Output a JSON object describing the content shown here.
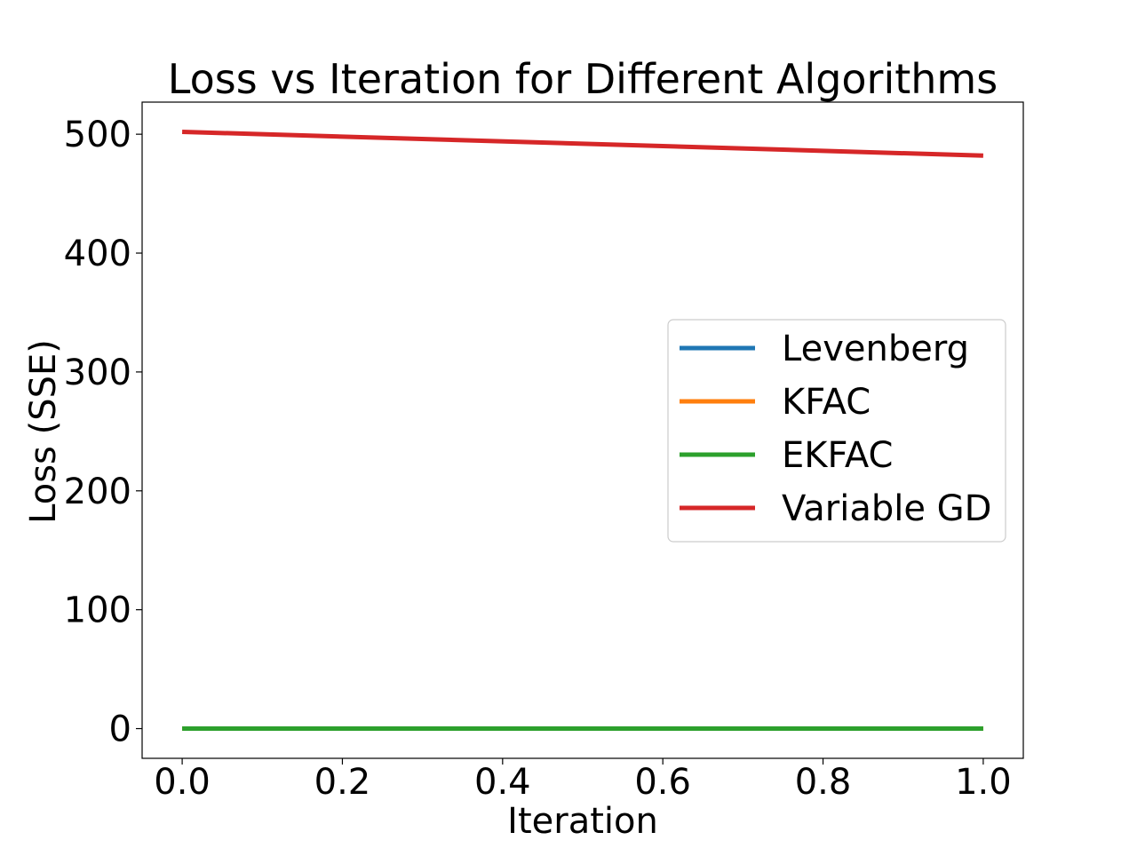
{
  "chart_data": {
    "type": "line",
    "title": "Loss vs Iteration for Different Algorithms",
    "xlabel": "Iteration",
    "ylabel": "Loss (SSE)",
    "xlim": [
      -0.05,
      1.05
    ],
    "ylim": [
      -25,
      527
    ],
    "xticks": [
      0.0,
      0.2,
      0.4,
      0.6,
      0.8,
      1.0
    ],
    "xtick_labels": [
      "0.0",
      "0.2",
      "0.4",
      "0.6",
      "0.8",
      "1.0"
    ],
    "yticks": [
      0,
      100,
      200,
      300,
      400,
      500
    ],
    "ytick_labels": [
      "0",
      "100",
      "200",
      "300",
      "400",
      "500"
    ],
    "grid": false,
    "legend_position": "center-right",
    "series": [
      {
        "name": "Levenberg",
        "color": "#1f77b4",
        "x": [
          0,
          1
        ],
        "y": [
          0,
          0
        ]
      },
      {
        "name": "KFAC",
        "color": "#ff7f0e",
        "x": [
          0,
          1
        ],
        "y": [
          0,
          0
        ]
      },
      {
        "name": "EKFAC",
        "color": "#2ca02c",
        "x": [
          0,
          1
        ],
        "y": [
          0,
          0
        ]
      },
      {
        "name": "Variable GD",
        "color": "#d62728",
        "x": [
          0,
          1
        ],
        "y": [
          502,
          482
        ]
      }
    ]
  }
}
